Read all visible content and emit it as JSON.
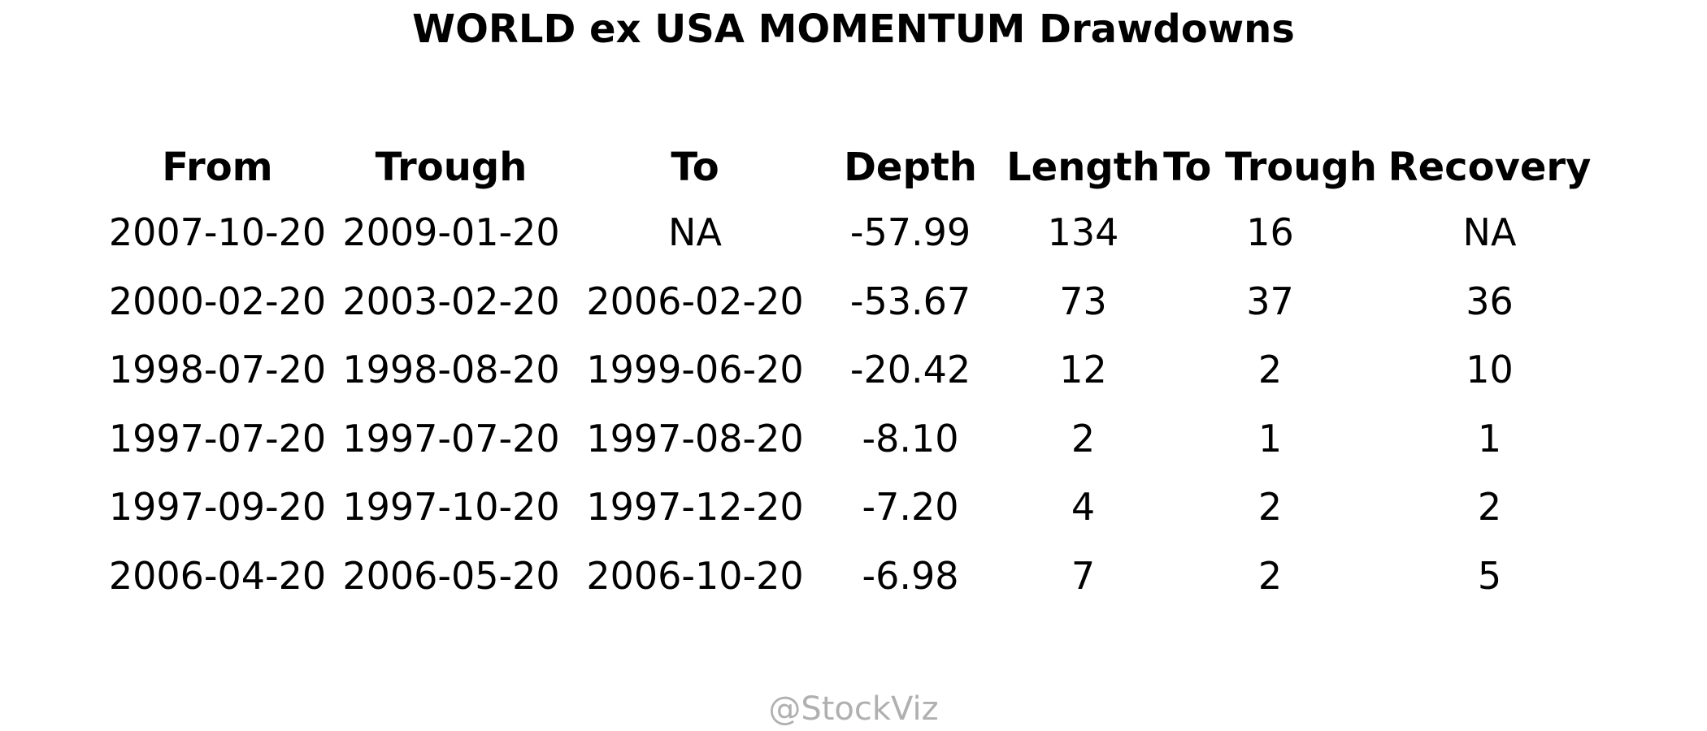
{
  "chart_data": {
    "type": "table",
    "title": "WORLD ex USA MOMENTUM Drawdowns",
    "columns": [
      "From",
      "Trough",
      "To",
      "Depth",
      "Length",
      "To Trough",
      "Recovery"
    ],
    "rows": [
      [
        "2007-10-20",
        "2009-01-20",
        "NA",
        "-57.99",
        "134",
        "16",
        "NA"
      ],
      [
        "2000-02-20",
        "2003-02-20",
        "2006-02-20",
        "-53.67",
        "73",
        "37",
        "36"
      ],
      [
        "1998-07-20",
        "1998-08-20",
        "1999-06-20",
        "-20.42",
        "12",
        "2",
        "10"
      ],
      [
        "1997-07-20",
        "1997-07-20",
        "1997-08-20",
        "-8.10",
        "2",
        "1",
        "1"
      ],
      [
        "1997-09-20",
        "1997-10-20",
        "1997-12-20",
        "-7.20",
        "4",
        "2",
        "2"
      ],
      [
        "2006-04-20",
        "2006-05-20",
        "2006-10-20",
        "-6.98",
        "7",
        "2",
        "5"
      ]
    ]
  },
  "watermark": "@StockViz"
}
